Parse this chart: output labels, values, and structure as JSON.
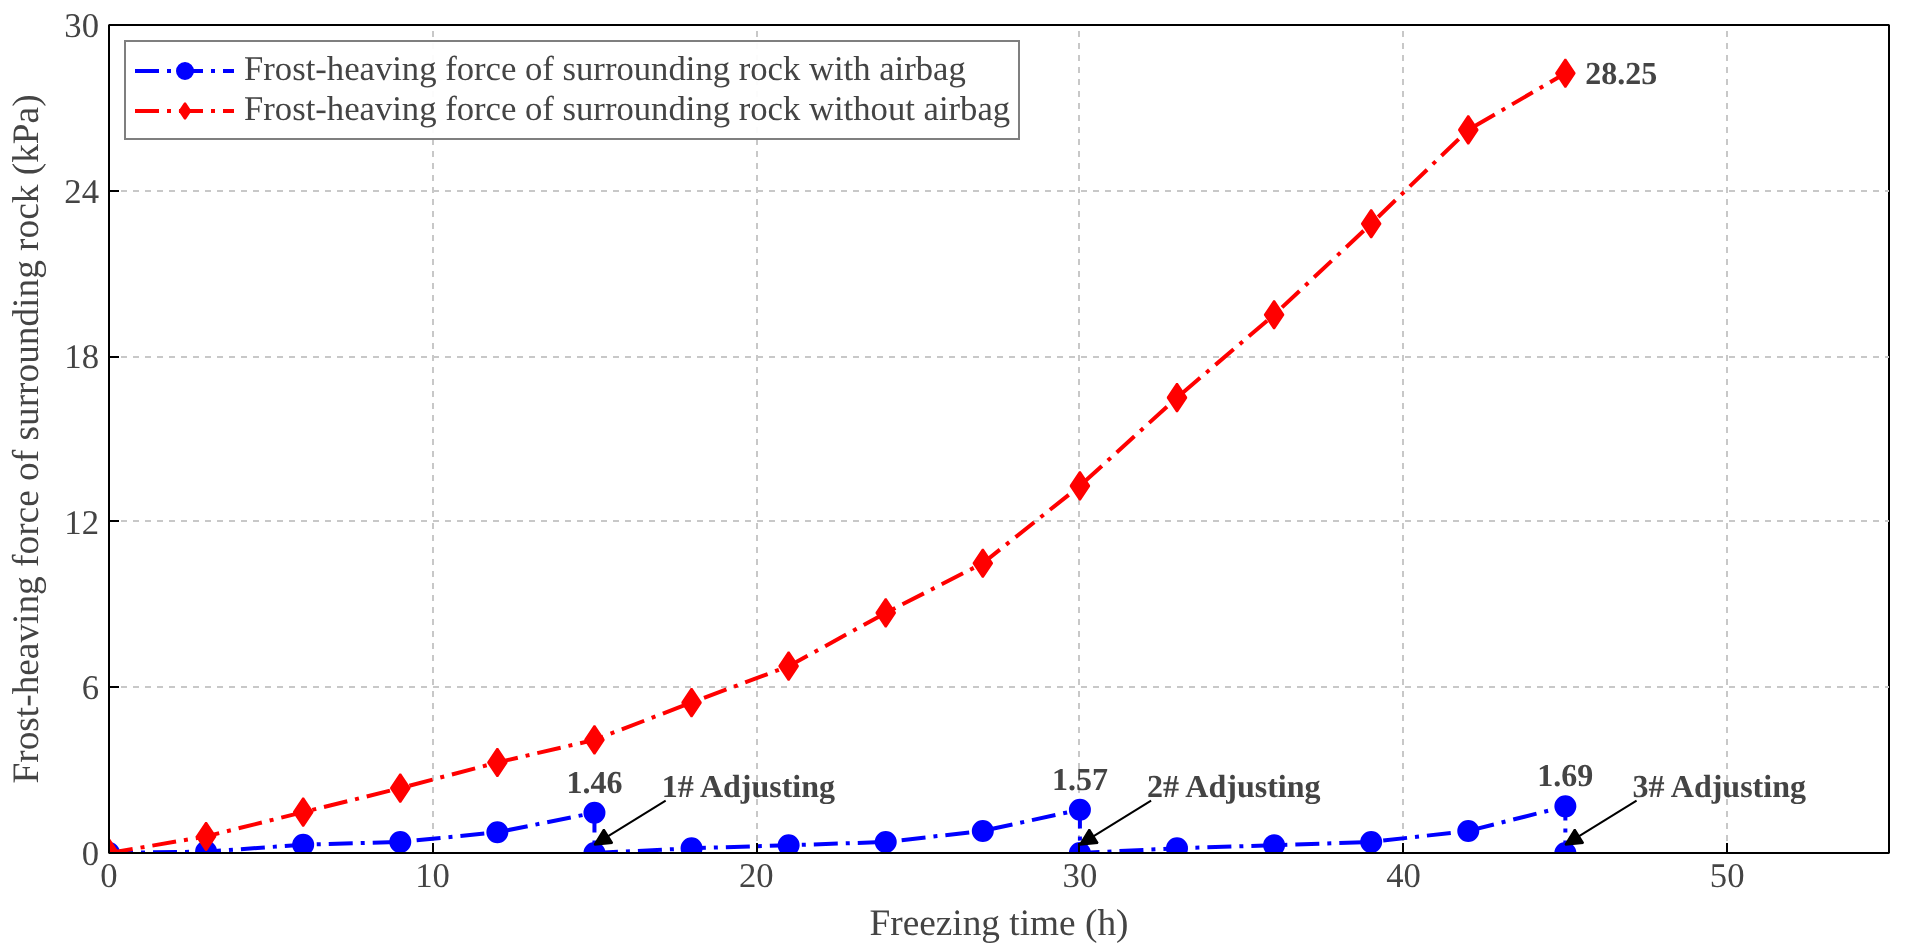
{
  "chart_data": {
    "type": "line",
    "xlabel": "Freezing time (h)",
    "ylabel": "Frost-heaving force of surrounding rock (kPa)",
    "xlim": [
      0,
      55
    ],
    "xticks": [
      0,
      10,
      20,
      30,
      40,
      50
    ],
    "ylim": [
      0,
      30
    ],
    "yticks": [
      0,
      6,
      12,
      18,
      24,
      30
    ],
    "grid": true,
    "legend": "top left",
    "line_style": "dashed",
    "series": [
      {
        "name": "Frost-heaving force of surrounding rock with airbag",
        "color": "#0000ff",
        "marker": "circle",
        "x": [
          0,
          3,
          6,
          9,
          12,
          15,
          15,
          18,
          21,
          24,
          27,
          30,
          30,
          33,
          36,
          39,
          42,
          45,
          45
        ],
        "values": [
          0,
          0.05,
          0.3,
          0.4,
          0.75,
          1.46,
          0,
          0.17,
          0.28,
          0.4,
          0.8,
          1.57,
          0,
          0.17,
          0.28,
          0.4,
          0.8,
          1.69,
          0
        ]
      },
      {
        "name": "Frost-heaving force of surrounding rock without airbag",
        "color": "#ff0000",
        "marker": "diamond",
        "x": [
          0,
          3,
          6,
          9,
          12,
          15,
          18,
          21,
          24,
          27,
          30,
          33,
          36,
          39,
          42,
          45
        ],
        "values": [
          0,
          0.6,
          1.48,
          2.35,
          3.28,
          4.1,
          5.45,
          6.77,
          8.7,
          10.5,
          13.3,
          16.5,
          19.5,
          22.8,
          26.2,
          28.25
        ]
      }
    ],
    "annotations": [
      {
        "text": "1.46",
        "x": 15,
        "y": 1.46
      },
      {
        "text": "1.57",
        "x": 30,
        "y": 1.57
      },
      {
        "text": "1.69",
        "x": 45,
        "y": 1.69
      },
      {
        "text": "28.25",
        "x": 45,
        "y": 28.25
      },
      {
        "text": "1# Adjusting",
        "x": 15,
        "y": 0.3
      },
      {
        "text": "2# Adjusting",
        "x": 30,
        "y": 0.3
      },
      {
        "text": "3# Adjusting",
        "x": 45,
        "y": 0.3
      }
    ]
  }
}
